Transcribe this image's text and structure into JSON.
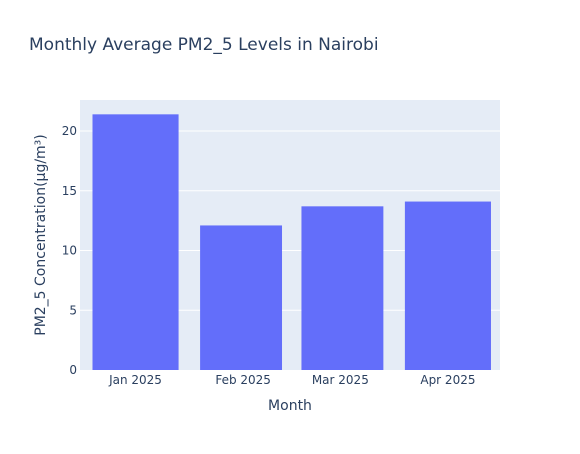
{
  "chart_data": {
    "type": "bar",
    "title": "Monthly Average PM2_5 Levels in Nairobi",
    "xlabel": "Month",
    "ylabel": "PM2_5 Concentration(µg/m³)",
    "x_axis_type": "date",
    "x_range": [
      "2024-12-16",
      "2025-04-16"
    ],
    "ylim": [
      0,
      22.6
    ],
    "yticks": [
      0,
      5,
      10,
      15,
      20
    ],
    "x_ticks": [
      {
        "date": "2025-01-01",
        "label": "Jan 2025"
      },
      {
        "date": "2025-02-01",
        "label": "Feb 2025"
      },
      {
        "date": "2025-03-01",
        "label": "Mar 2025"
      },
      {
        "date": "2025-04-01",
        "label": "Apr 2025"
      }
    ],
    "series": [
      {
        "color": "#636efa",
        "points": [
          {
            "date": "2025-01-01",
            "value": 21.4
          },
          {
            "date": "2025-02-01",
            "value": 12.1
          },
          {
            "date": "2025-03-01",
            "value": 13.7
          },
          {
            "date": "2025-04-01",
            "value": 14.1
          }
        ]
      }
    ],
    "grid": true,
    "legend": "none",
    "colors": {
      "plot_background": "#e5ecf6",
      "grid": "#ffffff",
      "text": "#2a3f5f",
      "bar": "#636efa"
    }
  }
}
